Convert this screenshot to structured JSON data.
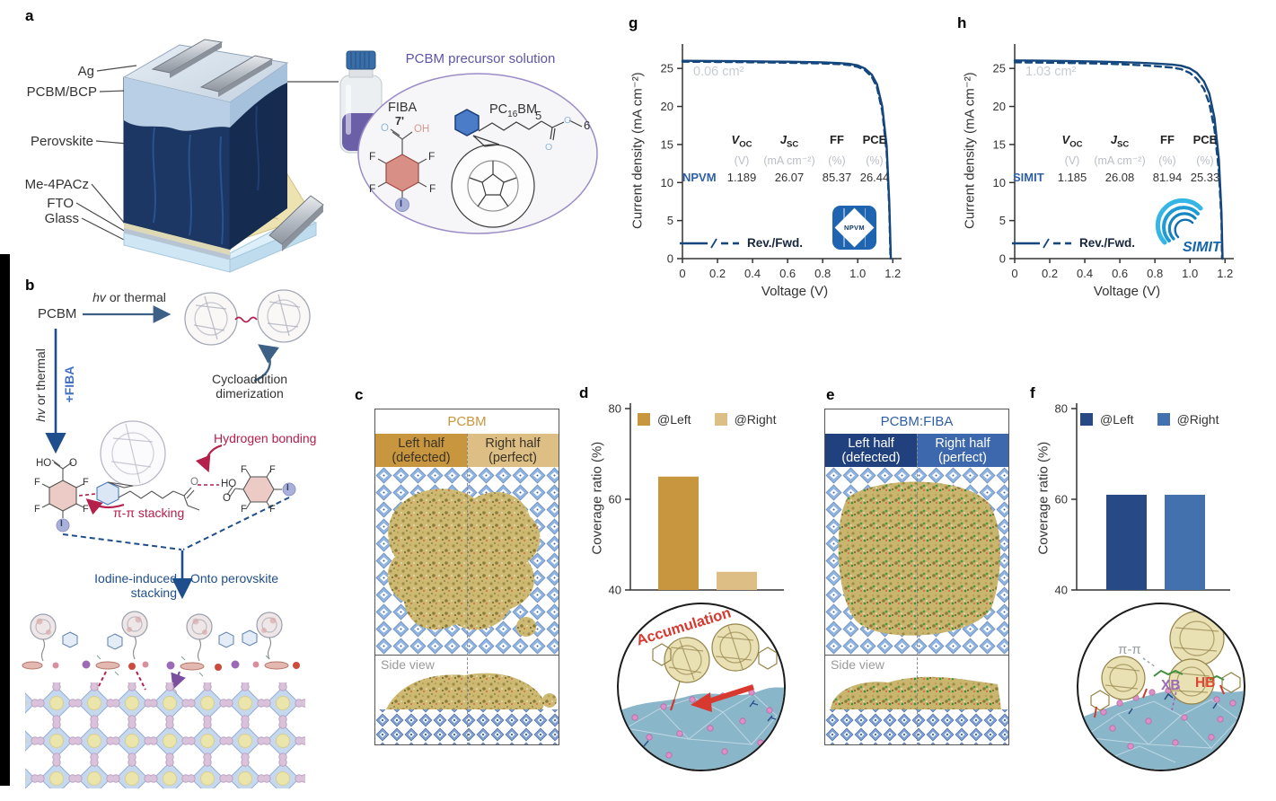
{
  "panels": {
    "a": "a",
    "b": "b",
    "c": "c",
    "d": "d",
    "e": "e",
    "f": "f",
    "g": "g",
    "h": "h"
  },
  "panel_a": {
    "layers": [
      "Ag",
      "PCBM/BCP",
      "Perovskite",
      "Me-4PACz",
      "FTO",
      "Glass"
    ],
    "solution_title": "PCBM precursor solution",
    "fiba": "FIBA",
    "pcbm_pre": "PC",
    "pcbm_sub": "16",
    "pcbm_post": "BM",
    "num5": "5",
    "num6": "6",
    "num7": "7'",
    "o": "O",
    "oh": "OH",
    "f": "F",
    "i": "I"
  },
  "panel_b": {
    "pcbm": "PCBM",
    "hv": "hv",
    "or_thermal": " or thermal",
    "plus_fiba": "+FIBA",
    "cycloaddition": "Cycloaddition dimerization",
    "hydrogen_bonding": "Hydrogen bonding",
    "pi_stacking": "π-π stacking",
    "iodine": "Iodine-induced stacking",
    "onto": "Onto perovskite",
    "ho": "HO",
    "o": "O",
    "f": "F",
    "i": "I"
  },
  "panel_c": {
    "title": "PCBM",
    "left1": "Left half",
    "left2": "(defected)",
    "right1": "Right half",
    "right2": "(perfect)",
    "side": "Side view"
  },
  "panel_e": {
    "title": "PCBM:FIBA",
    "left1": "Left half",
    "left2": "(defected)",
    "right1": "Right half",
    "right2": "(perfect)",
    "side": "Side view"
  },
  "panel_d": {
    "annotation": "Accumulation"
  },
  "panel_f": {
    "pi": "π-π",
    "xb": "XB",
    "hb": "HB"
  },
  "chart_data": [
    {
      "id": "d",
      "type": "bar",
      "ylabel": "Coverage ratio (%)",
      "ylim": [
        40,
        80
      ],
      "yticks": [
        40,
        60,
        80
      ],
      "ytick_labels": [
        "40",
        "60",
        "80"
      ],
      "categories": [
        "@Left",
        "@Right"
      ],
      "values": [
        65,
        44
      ],
      "colors": [
        "#c8963e",
        "#ddbe85"
      ],
      "legend": [
        {
          "label": "@Left",
          "color": "#c8963e"
        },
        {
          "label": "@Right",
          "color": "#ddbe85"
        }
      ]
    },
    {
      "id": "f",
      "type": "bar",
      "ylabel": "Coverage ratio (%)",
      "ylim": [
        40,
        80
      ],
      "yticks": [
        40,
        60,
        80
      ],
      "ytick_labels": [
        "40",
        "60",
        "80"
      ],
      "categories": [
        "@Left",
        "@Right"
      ],
      "values": [
        61,
        61
      ],
      "colors": [
        "#274a86",
        "#4371ad"
      ],
      "legend": [
        {
          "label": "@Left",
          "color": "#274a86"
        },
        {
          "label": "@Right",
          "color": "#4371ad"
        }
      ]
    },
    {
      "id": "g",
      "type": "line",
      "color": "#14477e",
      "xlabel": "Voltage (V)",
      "ylabel": "Current density (mA cm⁻²)",
      "area_label": "0.06 cm²",
      "legend_label": "Rev./Fwd.",
      "logo": "NPVM",
      "xlim": [
        0,
        1.25
      ],
      "ylim": [
        0,
        27.5
      ],
      "xticks": [
        0,
        0.2,
        0.4,
        0.6,
        0.8,
        1.0,
        1.2
      ],
      "xtick_labels": [
        "0",
        "0.2",
        "0.4",
        "0.6",
        "0.8",
        "1.0",
        "1.2"
      ],
      "yticks": [
        0,
        5,
        10,
        15,
        20,
        25
      ],
      "ytick_labels": [
        "0",
        "5",
        "10",
        "15",
        "20",
        "25"
      ],
      "series": [
        {
          "name": "Rev.",
          "dash": "",
          "x": [
            0,
            0.1,
            0.2,
            0.3,
            0.4,
            0.5,
            0.6,
            0.7,
            0.8,
            0.9,
            0.95,
            1.0,
            1.04,
            1.08,
            1.11,
            1.14,
            1.165,
            1.18,
            1.189
          ],
          "y": [
            26.0,
            25.99,
            25.97,
            25.95,
            25.93,
            25.9,
            25.88,
            25.84,
            25.8,
            25.7,
            25.6,
            25.4,
            25.0,
            24.2,
            22.9,
            20.0,
            14.8,
            7.5,
            0
          ]
        },
        {
          "name": "Fwd.",
          "dash": "7 5",
          "x": [
            0,
            0.1,
            0.2,
            0.3,
            0.4,
            0.5,
            0.6,
            0.7,
            0.8,
            0.9,
            0.95,
            1.0,
            1.04,
            1.08,
            1.11,
            1.14,
            1.165,
            1.18,
            1.187
          ],
          "y": [
            25.88,
            25.87,
            25.85,
            25.83,
            25.8,
            25.78,
            25.75,
            25.7,
            25.65,
            25.55,
            25.45,
            25.2,
            24.8,
            23.9,
            22.5,
            19.4,
            14.0,
            6.8,
            0
          ]
        }
      ],
      "table": {
        "headers": [
          {
            "sym": "V",
            "sub": "OC"
          },
          {
            "sym": "J",
            "sub": "SC"
          },
          {
            "sym": "FF",
            "sub": ""
          },
          {
            "sym": "PCE",
            "sub": ""
          }
        ],
        "units": [
          "(V)",
          "(mA cm⁻²)",
          "(%)",
          "(%)"
        ],
        "row_label": "NPVM",
        "values": [
          "1.189",
          "26.07",
          "85.37",
          "26.44"
        ]
      }
    },
    {
      "id": "h",
      "type": "line",
      "color": "#14477e",
      "xlabel": "Voltage (V)",
      "ylabel": "Current density (mA cm⁻²)",
      "area_label": "1.03 cm²",
      "legend_label": "Rev./Fwd.",
      "logo": "SIMIT",
      "xlim": [
        0,
        1.25
      ],
      "ylim": [
        0,
        27.5
      ],
      "xticks": [
        0,
        0.2,
        0.4,
        0.6,
        0.8,
        1.0,
        1.2
      ],
      "xtick_labels": [
        "0",
        "0.2",
        "0.4",
        "0.6",
        "0.8",
        "1.0",
        "1.2"
      ],
      "yticks": [
        0,
        5,
        10,
        15,
        20,
        25
      ],
      "ytick_labels": [
        "0",
        "5",
        "10",
        "15",
        "20",
        "25"
      ],
      "series": [
        {
          "name": "Rev.",
          "dash": "",
          "x": [
            0,
            0.1,
            0.2,
            0.3,
            0.4,
            0.5,
            0.6,
            0.7,
            0.8,
            0.9,
            0.95,
            1.0,
            1.04,
            1.08,
            1.11,
            1.14,
            1.165,
            1.18,
            1.186
          ],
          "y": [
            26.05,
            26.03,
            26.0,
            25.97,
            25.93,
            25.88,
            25.82,
            25.75,
            25.65,
            25.5,
            25.35,
            25.0,
            24.4,
            23.3,
            21.7,
            18.5,
            13.0,
            6.0,
            0
          ]
        },
        {
          "name": "Fwd.",
          "dash": "7 5",
          "x": [
            0,
            0.1,
            0.2,
            0.3,
            0.4,
            0.5,
            0.6,
            0.7,
            0.8,
            0.9,
            0.95,
            1.0,
            1.04,
            1.08,
            1.11,
            1.14,
            1.165,
            1.18,
            1.183
          ],
          "y": [
            25.8,
            25.78,
            25.75,
            25.72,
            25.68,
            25.62,
            25.55,
            25.45,
            25.3,
            25.1,
            24.9,
            24.4,
            23.6,
            22.3,
            20.4,
            17.0,
            11.5,
            5.0,
            0
          ]
        }
      ],
      "table": {
        "headers": [
          {
            "sym": "V",
            "sub": "OC"
          },
          {
            "sym": "J",
            "sub": "SC"
          },
          {
            "sym": "FF",
            "sub": ""
          },
          {
            "sym": "PCE",
            "sub": ""
          }
        ],
        "units": [
          "(V)",
          "(mA cm⁻²)",
          "(%)",
          "(%)"
        ],
        "row_label": "SIMIT",
        "values": [
          "1.185",
          "26.08",
          "81.94",
          "25.33"
        ]
      }
    }
  ]
}
